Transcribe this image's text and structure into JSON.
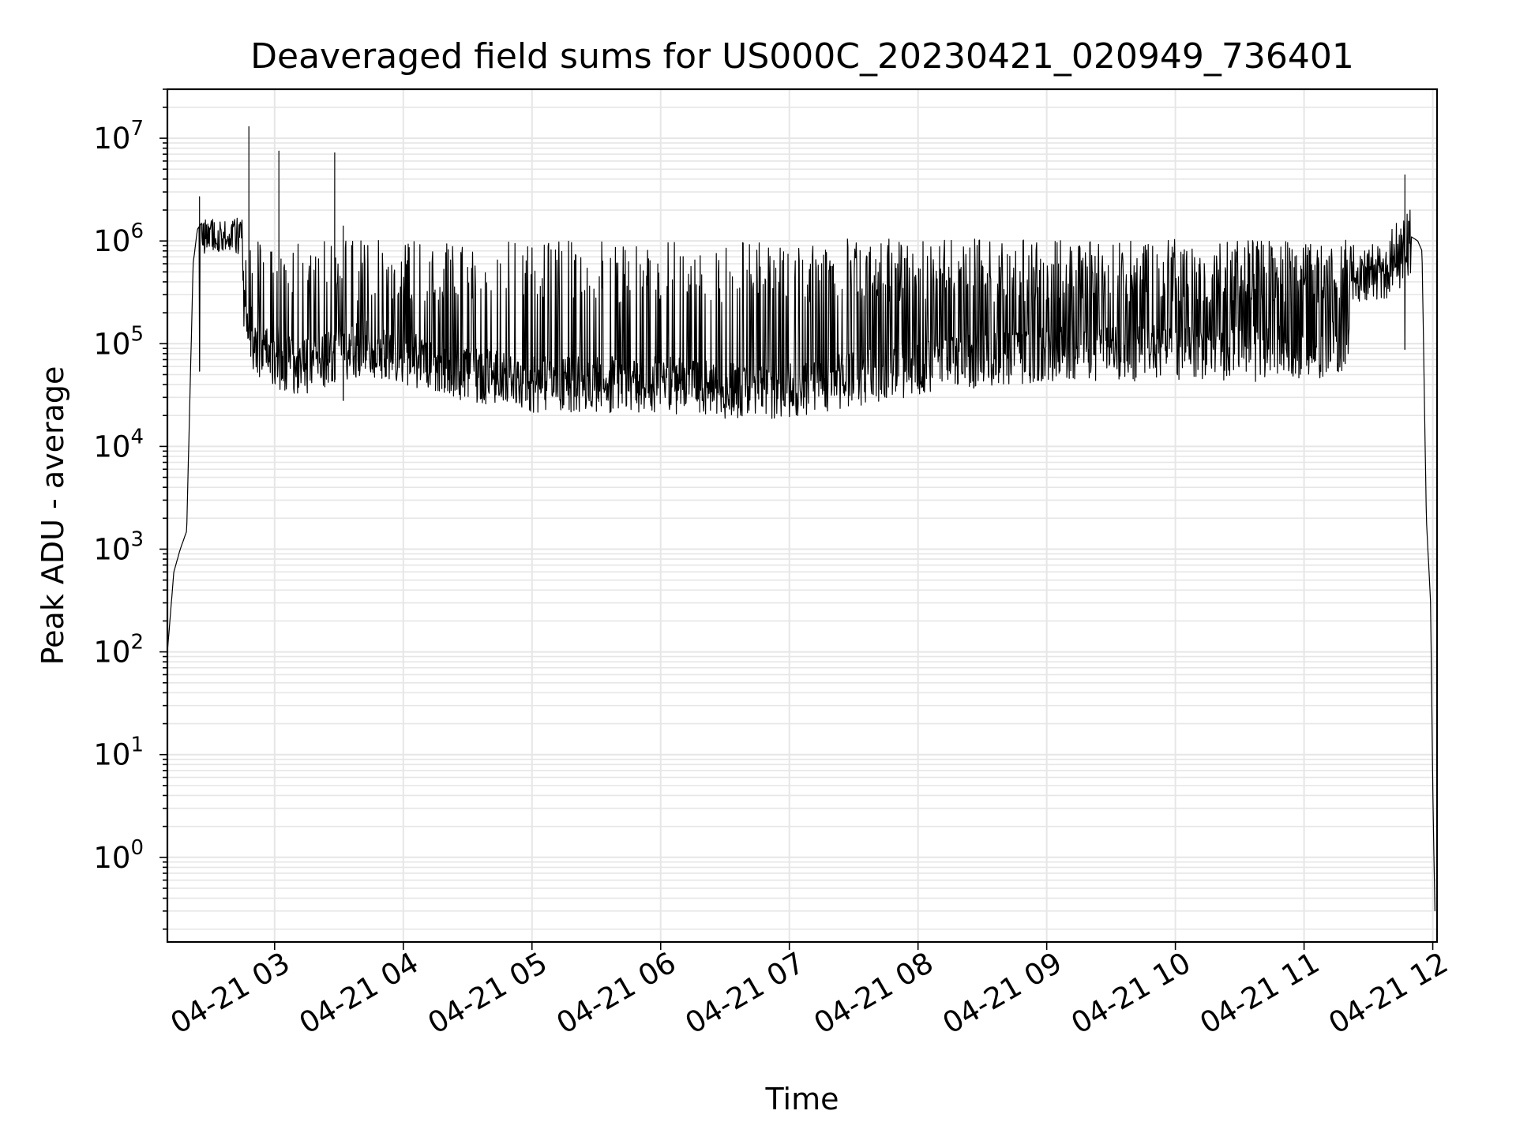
{
  "chart_data": {
    "type": "line",
    "title": "Deaveraged field sums for US000C_20230421_020949_736401",
    "xlabel": "Time",
    "ylabel": "Peak ADU - average",
    "yscale": "log",
    "ylim": [
      0.15,
      30000000
    ],
    "xlim": [
      "2023-04-21 02:10",
      "2023-04-21 12:02"
    ],
    "grid": true,
    "line_color": "#000000",
    "grid_color": "#e6e6e6",
    "x_ticks": [
      "04-21 03",
      "04-21 04",
      "04-21 05",
      "04-21 06",
      "04-21 07",
      "04-21 08",
      "04-21 09",
      "04-21 10",
      "04-21 11",
      "04-21 12"
    ],
    "y_ticks": [
      {
        "base": "10",
        "exp": "0"
      },
      {
        "base": "10",
        "exp": "1"
      },
      {
        "base": "10",
        "exp": "2"
      },
      {
        "base": "10",
        "exp": "3"
      },
      {
        "base": "10",
        "exp": "4"
      },
      {
        "base": "10",
        "exp": "5"
      },
      {
        "base": "10",
        "exp": "6"
      },
      {
        "base": "10",
        "exp": "7"
      }
    ],
    "series": [
      {
        "x": [
          "2023-04-21 02:10",
          "2023-04-21 02:13",
          "2023-04-21 02:16",
          "2023-04-21 02:19",
          "2023-04-21 02:22",
          "2023-04-21 02:24",
          "2023-04-21 02:26",
          "2023-04-21 02:29",
          "2023-04-21 02:32",
          "2023-04-21 02:36",
          "2023-04-21 02:40",
          "2023-04-21 02:45",
          "2023-04-21 02:50",
          "2023-04-21 02:55",
          "2023-04-21 03:00",
          "2023-04-21 03:10",
          "2023-04-21 03:20",
          "2023-04-21 03:30",
          "2023-04-21 03:45",
          "2023-04-21 04:00",
          "2023-04-21 04:15",
          "2023-04-21 04:30",
          "2023-04-21 05:00",
          "2023-04-21 05:30",
          "2023-04-21 06:00",
          "2023-04-21 06:30",
          "2023-04-21 07:00",
          "2023-04-21 07:30",
          "2023-04-21 08:00",
          "2023-04-21 08:30",
          "2023-04-21 09:00",
          "2023-04-21 09:30",
          "2023-04-21 10:00",
          "2023-04-21 10:30",
          "2023-04-21 11:00",
          "2023-04-21 11:20",
          "2023-04-21 11:35",
          "2023-04-21 11:45",
          "2023-04-21 11:50",
          "2023-04-21 11:53",
          "2023-04-21 11:55",
          "2023-04-21 11:57",
          "2023-04-21 11:59",
          "2023-04-21 12:00",
          "2023-04-21 12:01"
        ],
        "y": [
          100,
          600,
          1000,
          1500,
          600000,
          1300000,
          1500000,
          1200000,
          1400000,
          1300000,
          1200000,
          300000,
          100000,
          80000,
          70000,
          60000,
          60000,
          80000,
          90000,
          70000,
          60000,
          50000,
          40000,
          40000,
          40000,
          35000,
          35000,
          45000,
          60000,
          70000,
          80000,
          80000,
          80000,
          80000,
          80000,
          100000,
          600000,
          900000,
          1100000,
          1000000,
          800000,
          2000,
          300,
          5,
          0.3
        ]
      }
    ],
    "spikes": [
      {
        "x": "2023-04-21 02:48",
        "y": 13000000
      },
      {
        "x": "2023-04-21 03:02",
        "y": 7500000
      },
      {
        "x": "2023-04-21 03:28",
        "y": 7200000
      },
      {
        "x": "2023-04-21 02:25",
        "y": 2700000
      },
      {
        "x": "2023-04-21 03:32",
        "y": 1400000
      },
      {
        "x": "2023-04-21 11:47",
        "y": 4400000
      }
    ]
  }
}
